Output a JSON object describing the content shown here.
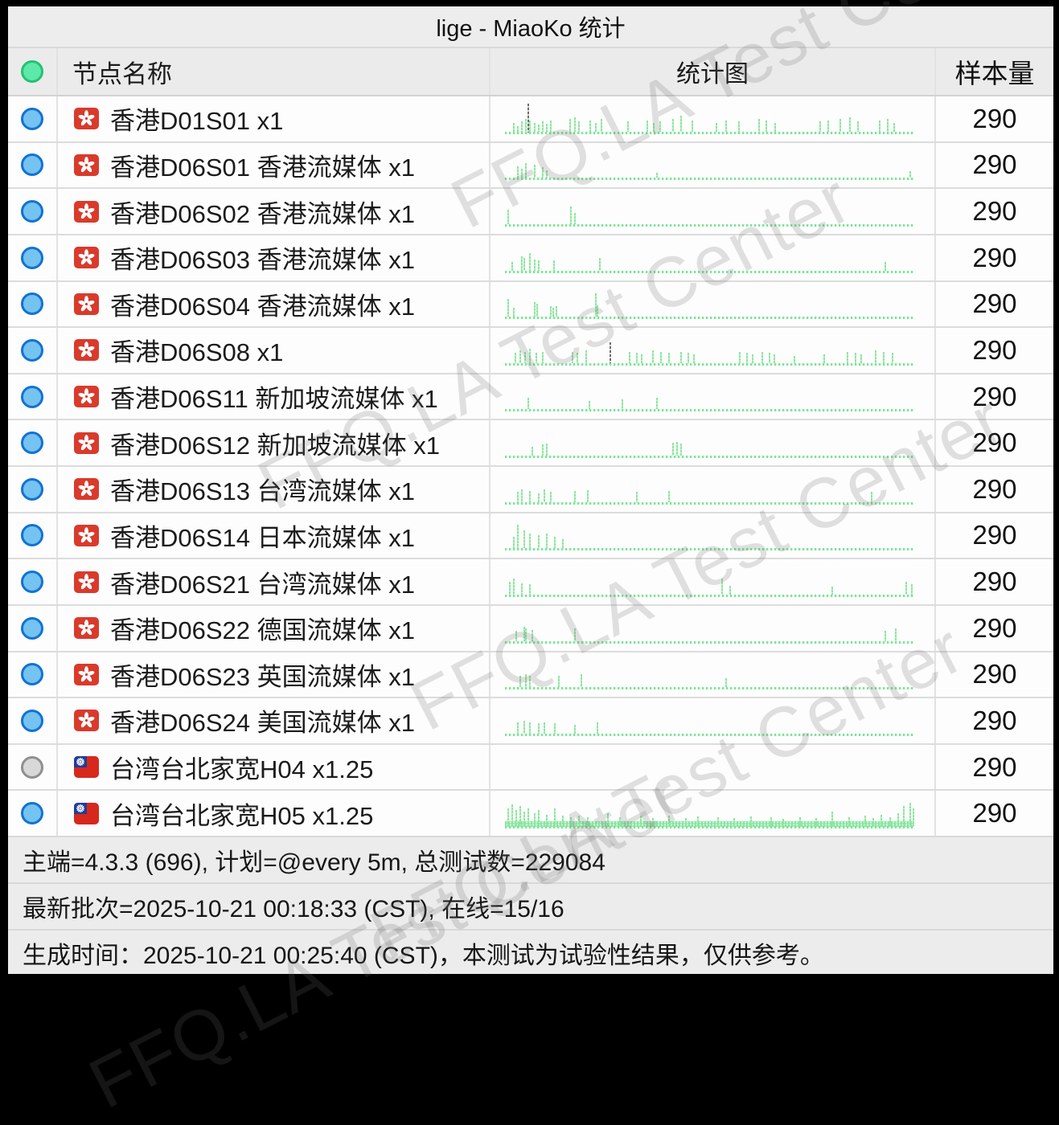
{
  "title": "lige - MiaoKo 统计",
  "watermark": {
    "text": "FFQ.LA Test Center"
  },
  "table": {
    "columns": {
      "name": "节点名称",
      "chart": "统计图",
      "sample": "样本量"
    },
    "header_dot": "all-online-green",
    "rows": [
      {
        "status": "online",
        "flag": "hk",
        "name": "香港D01S01 x1",
        "sample": "290",
        "spark": {
          "bars": [
            [
              2,
              30
            ],
            [
              3,
              20
            ],
            [
              4,
              35
            ],
            [
              5,
              45
            ],
            [
              6,
              40
            ],
            [
              7,
              30
            ],
            [
              8,
              25
            ],
            [
              9,
              35
            ],
            [
              10,
              28
            ],
            [
              11,
              40
            ],
            [
              15.7,
              45
            ],
            [
              17,
              50
            ],
            [
              18,
              35
            ],
            [
              20.6,
              40
            ],
            [
              22,
              30
            ],
            [
              23.5,
              45
            ],
            [
              30,
              35
            ],
            [
              34.7,
              40
            ],
            [
              36.3,
              30
            ],
            [
              37.8,
              35
            ],
            [
              41,
              45
            ],
            [
              43,
              55
            ],
            [
              45.7,
              40
            ],
            [
              51.6,
              30
            ],
            [
              54,
              40
            ],
            [
              57,
              35
            ],
            [
              62,
              45
            ],
            [
              63.7,
              40
            ],
            [
              66,
              30
            ],
            [
              77,
              35
            ],
            [
              79,
              40
            ],
            [
              81.8,
              45
            ],
            [
              84.3,
              50
            ],
            [
              86.3,
              35
            ],
            [
              91.6,
              40
            ],
            [
              93.5,
              45
            ],
            [
              95,
              30
            ]
          ],
          "dark": [
            [
              5.5,
              100
            ]
          ]
        }
      },
      {
        "status": "online",
        "flag": "hk",
        "name": "香港D06S01 香港流媒体 x1",
        "sample": "290",
        "spark": {
          "bars": [
            [
              3,
              40
            ],
            [
              4,
              30
            ],
            [
              5,
              50
            ],
            [
              7,
              45
            ],
            [
              9,
              35
            ],
            [
              10,
              25
            ],
            [
              37,
              18
            ],
            [
              99,
              22
            ]
          ]
        }
      },
      {
        "status": "online",
        "flag": "hk",
        "name": "香港D06S02 香港流媒体 x1",
        "sample": "290",
        "spark": {
          "bars": [
            [
              0.5,
              50
            ],
            [
              16,
              60
            ],
            [
              17,
              40
            ]
          ]
        }
      },
      {
        "status": "online",
        "flag": "hk",
        "name": "香港D06S03 香港流媒体 x1",
        "sample": "290",
        "spark": {
          "bars": [
            [
              1.6,
              30
            ],
            [
              4,
              50
            ],
            [
              4.5,
              45
            ],
            [
              6,
              60
            ],
            [
              7,
              40
            ],
            [
              8,
              35
            ],
            [
              11.8,
              35
            ],
            [
              23,
              45
            ],
            [
              93,
              30
            ]
          ]
        }
      },
      {
        "status": "online",
        "flag": "hk",
        "name": "香港D06S04 香港流媒体 x1",
        "sample": "290",
        "spark": {
          "bars": [
            [
              0.6,
              60
            ],
            [
              2,
              30
            ],
            [
              7,
              50
            ],
            [
              7.7,
              45
            ],
            [
              11,
              35
            ],
            [
              11.7,
              30
            ],
            [
              12.4,
              35
            ],
            [
              22,
              80
            ],
            [
              22.5,
              40
            ]
          ]
        }
      },
      {
        "status": "online",
        "flag": "hk",
        "name": "香港D06S08 x1",
        "sample": "290",
        "spark": {
          "bars": [
            [
              2.4,
              35
            ],
            [
              3.5,
              45
            ],
            [
              4.7,
              40
            ],
            [
              6,
              50
            ],
            [
              7.5,
              35
            ],
            [
              9,
              40
            ],
            [
              16.3,
              40
            ],
            [
              17.6,
              35
            ],
            [
              19.6,
              45
            ],
            [
              30.4,
              40
            ],
            [
              32,
              35
            ],
            [
              33.3,
              30
            ],
            [
              36,
              45
            ],
            [
              38,
              40
            ],
            [
              40,
              35
            ],
            [
              43,
              40
            ],
            [
              44.7,
              35
            ],
            [
              46,
              30
            ],
            [
              57.3,
              40
            ],
            [
              59,
              35
            ],
            [
              60.4,
              30
            ],
            [
              62.7,
              40
            ],
            [
              64.5,
              35
            ],
            [
              65.7,
              30
            ],
            [
              70.6,
              25
            ],
            [
              78,
              30
            ],
            [
              83.7,
              40
            ],
            [
              85.7,
              35
            ],
            [
              87,
              30
            ],
            [
              90.6,
              45
            ],
            [
              92.5,
              40
            ],
            [
              94.7,
              35
            ]
          ],
          "dark": [
            [
              25.5,
              75
            ]
          ]
        }
      },
      {
        "status": "online",
        "flag": "hk",
        "name": "香港D06S11 新加坡流媒体 x1",
        "sample": "290",
        "spark": {
          "bars": [
            [
              5.5,
              40
            ],
            [
              20.5,
              28
            ],
            [
              28.5,
              32
            ],
            [
              37,
              40
            ]
          ]
        }
      },
      {
        "status": "online",
        "flag": "hk",
        "name": "香港D06S12 新加坡流媒体 x1",
        "sample": "290",
        "spark": {
          "bars": [
            [
              6.5,
              30
            ],
            [
              9,
              40
            ],
            [
              10,
              42
            ],
            [
              41,
              45
            ],
            [
              42,
              48
            ],
            [
              43,
              42
            ]
          ]
        }
      },
      {
        "status": "online",
        "flag": "hk",
        "name": "香港D06S13 台湾流媒体 x1",
        "sample": "290",
        "spark": {
          "bars": [
            [
              3,
              35
            ],
            [
              4,
              45
            ],
            [
              6,
              40
            ],
            [
              8,
              30
            ],
            [
              9.5,
              45
            ],
            [
              11,
              35
            ],
            [
              17,
              40
            ],
            [
              20,
              42
            ],
            [
              32,
              35
            ],
            [
              40,
              40
            ],
            [
              89.5,
              35
            ]
          ]
        }
      },
      {
        "status": "online",
        "flag": "hk",
        "name": "香港D06S14 日本流媒体 x1",
        "sample": "290",
        "spark": {
          "bars": [
            [
              2,
              40
            ],
            [
              3,
              80
            ],
            [
              4.5,
              60
            ],
            [
              6,
              50
            ],
            [
              8,
              45
            ],
            [
              10,
              50
            ],
            [
              12,
              40
            ],
            [
              14,
              30
            ]
          ]
        }
      },
      {
        "status": "online",
        "flag": "hk",
        "name": "香港D06S21 台湾流媒体 x1",
        "sample": "290",
        "spark": {
          "bars": [
            [
              1,
              45
            ],
            [
              2,
              55
            ],
            [
              4,
              40
            ],
            [
              6,
              35
            ],
            [
              53,
              55
            ],
            [
              55,
              30
            ],
            [
              80,
              28
            ],
            [
              98,
              45
            ],
            [
              99.5,
              35
            ]
          ]
        }
      },
      {
        "status": "online",
        "flag": "hk",
        "name": "香港D06S22 德国流媒体 x1",
        "sample": "290",
        "spark": {
          "bars": [
            [
              2.5,
              35
            ],
            [
              4.5,
              50
            ],
            [
              5,
              45
            ],
            [
              6.5,
              40
            ],
            [
              17,
              45
            ],
            [
              93,
              35
            ],
            [
              95.5,
              45
            ]
          ]
        }
      },
      {
        "status": "online",
        "flag": "hk",
        "name": "香港D06S23 英国流媒体 x1",
        "sample": "290",
        "spark": {
          "bars": [
            [
              3.5,
              40
            ],
            [
              5,
              45
            ],
            [
              6,
              40
            ],
            [
              13,
              40
            ],
            [
              18.5,
              45
            ],
            [
              54,
              30
            ]
          ]
        }
      },
      {
        "status": "online",
        "flag": "hk",
        "name": "香港D06S24 美国流媒体 x1",
        "sample": "290",
        "spark": {
          "bars": [
            [
              3,
              40
            ],
            [
              4.5,
              45
            ],
            [
              6,
              40
            ],
            [
              8,
              35
            ],
            [
              9.5,
              40
            ],
            [
              12,
              35
            ],
            [
              17,
              30
            ],
            [
              22.5,
              40
            ]
          ]
        }
      },
      {
        "status": "offline",
        "flag": "tw",
        "name": "台湾台北家宽H04 x1.25",
        "sample": "290",
        "spark": null
      },
      {
        "status": "online",
        "flag": "tw",
        "name": "台湾台北家宽H05 x1.25",
        "sample": "290",
        "spark": {
          "band": 7,
          "bars": [
            [
              0.5,
              60
            ],
            [
              1.5,
              75
            ],
            [
              2.5,
              55
            ],
            [
              3.5,
              70
            ],
            [
              4.5,
              50
            ],
            [
              5.5,
              60
            ],
            [
              7,
              45
            ],
            [
              8,
              55
            ],
            [
              10,
              40
            ],
            [
              12,
              60
            ],
            [
              14,
              35
            ],
            [
              16,
              30
            ],
            [
              18,
              35
            ],
            [
              20,
              30
            ],
            [
              25,
              45
            ],
            [
              28,
              30
            ],
            [
              33,
              35
            ],
            [
              36,
              28
            ],
            [
              40,
              35
            ],
            [
              44,
              28
            ],
            [
              47,
              32
            ],
            [
              52,
              30
            ],
            [
              56,
              28
            ],
            [
              60,
              32
            ],
            [
              65,
              30
            ],
            [
              68,
              25
            ],
            [
              72,
              30
            ],
            [
              76,
              28
            ],
            [
              80,
              50
            ],
            [
              84,
              30
            ],
            [
              88,
              35
            ],
            [
              90,
              28
            ],
            [
              92,
              40
            ],
            [
              94,
              30
            ],
            [
              96,
              45
            ],
            [
              97.5,
              70
            ],
            [
              99,
              80
            ],
            [
              99.8,
              60
            ]
          ]
        }
      }
    ]
  },
  "footer": {
    "line1": "主端=4.3.3 (696), 计划=@every 5m, 总测试数=229084",
    "line2": "最新批次=2025-10-21 00:18:33 (CST), 在线=15/16",
    "line3": "生成时间：2025-10-21 00:25:40 (CST)，本测试为试验性结果，仅供参考。"
  },
  "colors": {
    "dot_online_fill": "#74c3f0",
    "dot_online_border": "#1272d4",
    "dot_offline_fill": "#d8d8d8",
    "dot_offline_border": "#8f8f8f",
    "dot_header_fill": "#5ce9a9",
    "dot_header_border": "#23c273",
    "spark_green": "#8be79d",
    "spark_dark": "#6d6d6d",
    "flag_hk_bg": "#d93a2b",
    "flag_hk_emblem": "#ffffff",
    "flag_tw_bg": "#d7281d",
    "flag_tw_canton": "#1f3d99",
    "flag_tw_sun": "#ffffff"
  }
}
